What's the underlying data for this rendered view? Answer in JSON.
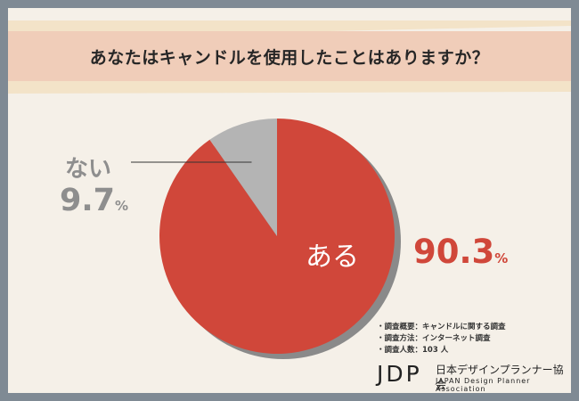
{
  "title": "あなたはキャンドルを使用したことはありますか？",
  "colors": {
    "aru": "#d0473a",
    "nai": "#b4b4b4",
    "shadow": "#8a8a8a",
    "title_band": "#f0cdb9"
  },
  "chart_data": {
    "type": "pie",
    "title": "あなたはキャンドルを使用したことはありますか？",
    "slices": [
      {
        "label": "ある",
        "value": 90.3,
        "display": "90.3",
        "unit": "%"
      },
      {
        "label": "ない",
        "value": 9.7,
        "display": "9.7",
        "unit": "%"
      }
    ]
  },
  "notes": [
    "・調査概要：キャンドルに関する調査",
    "・調査方法：インターネット調査",
    "・調査人数：103 人"
  ],
  "logo": {
    "mark": "JDP",
    "name_ja": "日本デザインプランナー協会",
    "name_en": "JAPAN Design Planner Association"
  }
}
